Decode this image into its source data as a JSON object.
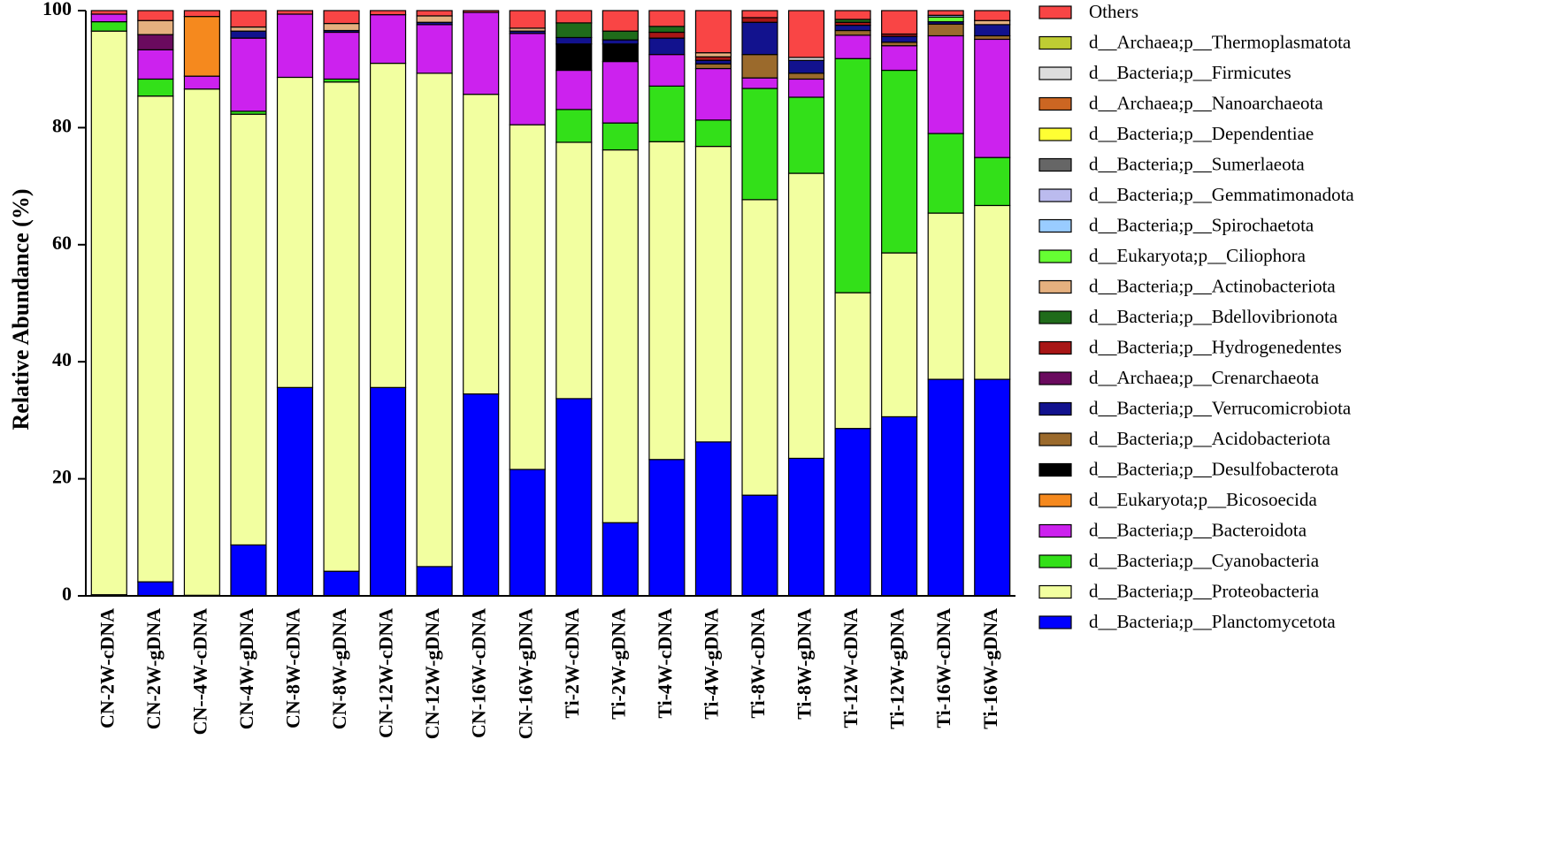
{
  "chart_data": {
    "type": "bar",
    "stacked": true,
    "title": "",
    "xlabel": "",
    "ylabel": "Relative Abundance (%)",
    "ylim": [
      0,
      100
    ],
    "yticks": [
      0,
      20,
      40,
      60,
      80,
      100
    ],
    "legend_position": "right",
    "categories": [
      "CN-2W-cDNA",
      "CN-2W-gDNA",
      "CN--4W-cDNA",
      "CN-4W-gDNA",
      "CN-8W-cDNA",
      "CN-8W-gDNA",
      "CN-12W-cDNA",
      "CN-12W-gDNA",
      "CN-16W-cDNA",
      "CN-16W-gDNA",
      "Ti-2W-cDNA",
      "Ti-2W-gDNA",
      "Ti-4W-cDNA",
      "Ti-4W-gDNA",
      "Ti-8W-cDNA",
      "Ti-8W-gDNA",
      "Ti-12W-cDNA",
      "Ti-12W-gDNA",
      "Ti-16W-cDNA",
      "Ti-16W-gDNA"
    ],
    "series": [
      {
        "name": "d__Bacteria;p__Planctomycetota",
        "color": "#0000ff",
        "values": [
          0.2,
          2.4,
          0.1,
          8.7,
          35.6,
          4.2,
          35.6,
          5.0,
          34.5,
          21.6,
          33.7,
          12.5,
          23.3,
          26.3,
          17.2,
          23.5,
          28.6,
          30.6,
          37.0,
          37.0
        ]
      },
      {
        "name": "d__Bacteria;p__Proteobacteria",
        "color": "#f2ffa0",
        "values": [
          96.3,
          83.0,
          86.5,
          73.6,
          53.0,
          83.6,
          55.4,
          84.3,
          51.2,
          58.9,
          43.8,
          63.7,
          54.3,
          50.5,
          50.5,
          48.7,
          23.2,
          28.0,
          28.4,
          29.7
        ]
      },
      {
        "name": "d__Bacteria;p__Cyanobacteria",
        "color": "#33e019",
        "values": [
          1.6,
          2.9,
          0,
          0.5,
          0,
          0.5,
          0,
          0,
          0,
          0,
          5.6,
          4.6,
          9.5,
          4.5,
          19.0,
          13.0,
          40.0,
          31.2,
          13.6,
          8.2
        ]
      },
      {
        "name": "d__Bacteria;p__Bacteroidota",
        "color": "#cc22ee",
        "values": [
          1.3,
          5.0,
          2.2,
          12.5,
          10.8,
          8.0,
          8.3,
          8.3,
          14.0,
          15.6,
          6.7,
          10.5,
          5.4,
          8.8,
          1.8,
          3.1,
          4.0,
          4.2,
          16.7,
          20.2
        ]
      },
      {
        "name": "d__Eukaryota;p__Bicosoecida",
        "color": "#f5891e",
        "values": [
          0,
          0,
          10.2,
          0,
          0,
          0,
          0,
          0,
          0,
          0,
          0,
          0,
          0,
          0,
          0,
          0,
          0,
          0,
          0,
          0
        ]
      },
      {
        "name": "d__Bacteria;p__Desulfobacterota",
        "color": "#000000",
        "values": [
          0,
          0,
          0,
          0,
          0,
          0,
          0,
          0,
          0,
          0,
          4.5,
          3.0,
          0,
          0,
          0,
          0,
          0,
          0,
          0,
          0
        ]
      },
      {
        "name": "d__Bacteria;p__Acidobacteriota",
        "color": "#9b6a2c",
        "values": [
          0,
          0,
          0,
          0,
          0,
          0,
          0,
          0,
          0,
          0,
          0,
          0,
          0,
          0.8,
          4.0,
          1.0,
          0.8,
          0.6,
          2.0,
          0.6
        ]
      },
      {
        "name": "d__Bacteria;p__Verrucomicrobiota",
        "color": "#12128e",
        "values": [
          0,
          0,
          0,
          1.2,
          0,
          0.3,
          0,
          0.4,
          0,
          0.4,
          1.1,
          0.7,
          2.8,
          0.6,
          5.5,
          2.2,
          0.9,
          1.0,
          0.4,
          1.9
        ]
      },
      {
        "name": "d__Archaea;p__Crenarchaeota",
        "color": "#6a0a5e",
        "values": [
          0,
          2.6,
          0,
          0,
          0,
          0,
          0,
          0,
          0,
          0,
          0,
          0,
          0,
          0,
          0,
          0,
          0,
          0,
          0,
          0
        ]
      },
      {
        "name": "d__Bacteria;p__Hydrogenedentes",
        "color": "#a81616",
        "values": [
          0,
          0,
          0,
          0,
          0,
          0,
          0,
          0,
          0,
          0,
          0,
          0,
          1.0,
          0.6,
          0.8,
          0,
          0.5,
          0.4,
          0,
          0
        ]
      },
      {
        "name": "d__Bacteria;p__Bdellovibrionota",
        "color": "#1f6b1a",
        "values": [
          0,
          0,
          0,
          0,
          0,
          0,
          0,
          0,
          0,
          0,
          2.5,
          1.5,
          1.0,
          0,
          0,
          0,
          0.5,
          0,
          0,
          0
        ]
      },
      {
        "name": "d__Bacteria;p__Actinobacteriota",
        "color": "#e5b07f",
        "values": [
          0,
          2.4,
          0,
          0.7,
          0,
          1.2,
          0,
          1.1,
          0,
          0.5,
          0,
          0,
          0,
          0.7,
          0,
          0,
          0,
          0,
          0,
          0.7
        ]
      },
      {
        "name": "d__Eukaryota;p__Ciliophora",
        "color": "#66ff33",
        "values": [
          0,
          0,
          0,
          0,
          0,
          0,
          0,
          0,
          0,
          0,
          0,
          0,
          0,
          0,
          0,
          0,
          0,
          0,
          0.8,
          0
        ]
      },
      {
        "name": "d__Bacteria;p__Spirochaetota",
        "color": "#99ccff",
        "values": [
          0,
          0,
          0,
          0,
          0,
          0,
          0,
          0,
          0,
          0,
          0,
          0,
          0,
          0,
          0,
          0,
          0,
          0,
          0.3,
          0
        ]
      },
      {
        "name": "d__Bacteria;p__Gemmatimonadota",
        "color": "#bbbbee",
        "values": [
          0,
          0,
          0,
          0,
          0,
          0,
          0,
          0,
          0,
          0,
          0,
          0,
          0,
          0,
          0,
          0,
          0,
          0,
          0,
          0
        ]
      },
      {
        "name": "d__Bacteria;p__Sumerlaeota",
        "color": "#666666",
        "values": [
          0,
          0,
          0,
          0,
          0,
          0,
          0,
          0,
          0,
          0,
          0,
          0,
          0,
          0,
          0,
          0,
          0,
          0,
          0,
          0
        ]
      },
      {
        "name": "d__Bacteria;p__Dependentiae",
        "color": "#ffff33",
        "values": [
          0,
          0,
          0,
          0,
          0,
          0,
          0,
          0,
          0,
          0,
          0,
          0,
          0,
          0,
          0,
          0,
          0,
          0,
          0,
          0
        ]
      },
      {
        "name": "d__Archaea;p__Nanoarchaeota",
        "color": "#cc6622",
        "values": [
          0,
          0,
          0,
          0,
          0,
          0,
          0,
          0,
          0,
          0,
          0,
          0,
          0,
          0,
          0,
          0,
          0,
          0,
          0,
          0
        ]
      },
      {
        "name": "d__Bacteria;p__Firmicutes",
        "color": "#dddddd",
        "values": [
          0,
          0,
          0,
          0,
          0,
          0,
          0,
          0,
          0,
          0,
          0,
          0,
          0,
          0,
          0,
          0.5,
          0,
          0,
          0,
          0
        ]
      },
      {
        "name": "d__Archaea;p__Thermoplasmatota",
        "color": "#bfcc33",
        "values": [
          0,
          0,
          0,
          0,
          0,
          0,
          0,
          0,
          0,
          0,
          0,
          0,
          0,
          0,
          0,
          0,
          0,
          0,
          0,
          0
        ]
      },
      {
        "name": "Others",
        "color": "#f94545",
        "values": [
          0.6,
          1.7,
          1.0,
          2.8,
          0.6,
          2.2,
          0.7,
          0.9,
          0.3,
          3.0,
          2.1,
          3.5,
          2.7,
          7.2,
          1.2,
          8.0,
          1.5,
          4.0,
          0.8,
          1.7
        ]
      }
    ]
  }
}
